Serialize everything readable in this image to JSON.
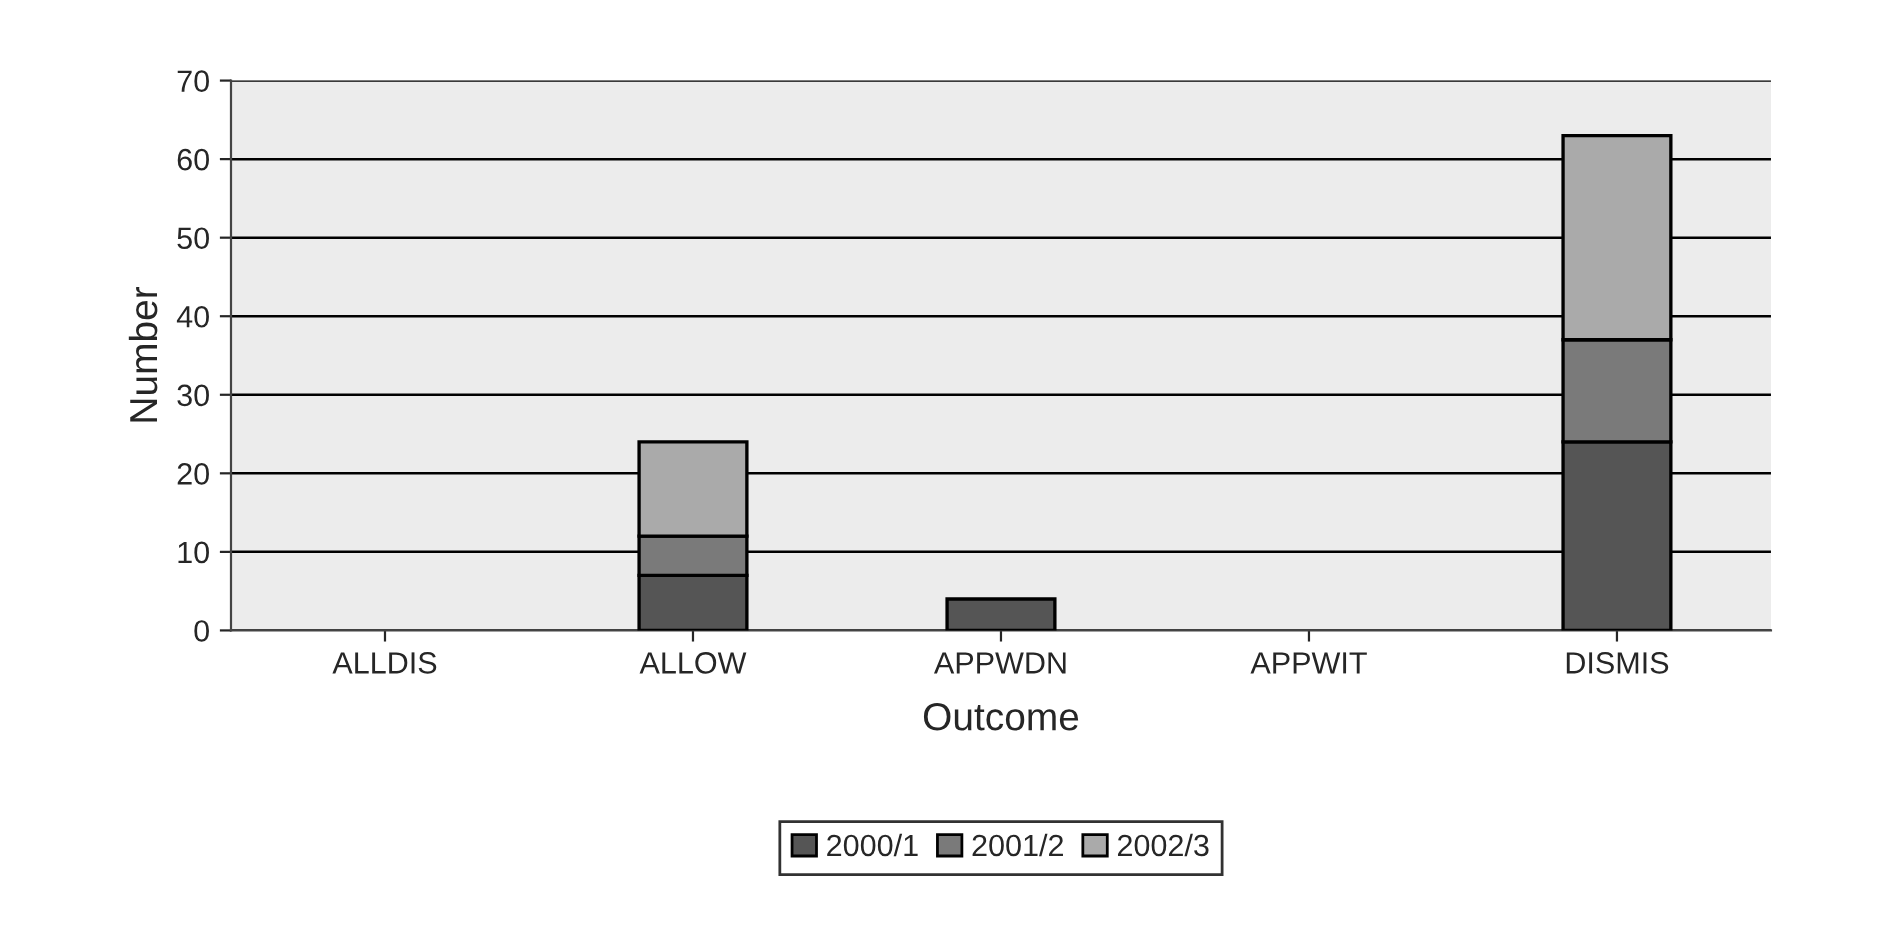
{
  "chart_data": {
    "type": "bar",
    "stacked": true,
    "xlabel": "Outcome",
    "ylabel": "Number",
    "categories": [
      "ALLDIS",
      "ALLOW",
      "APPWDN",
      "APPWIT",
      "DISMIS"
    ],
    "series": [
      {
        "name": "2000/1",
        "color": "#555555",
        "values": [
          0,
          7,
          4,
          0,
          24
        ]
      },
      {
        "name": "2001/2",
        "color": "#7a7a7a",
        "values": [
          0,
          5,
          0,
          0,
          13
        ]
      },
      {
        "name": "2002/3",
        "color": "#aaaaaa",
        "values": [
          0,
          12,
          0,
          0,
          26
        ]
      }
    ],
    "ylim": [
      0,
      70
    ],
    "yticks": [
      0,
      10,
      20,
      30,
      40,
      50,
      60,
      70
    ],
    "grid": "y",
    "legend": "bottom"
  }
}
